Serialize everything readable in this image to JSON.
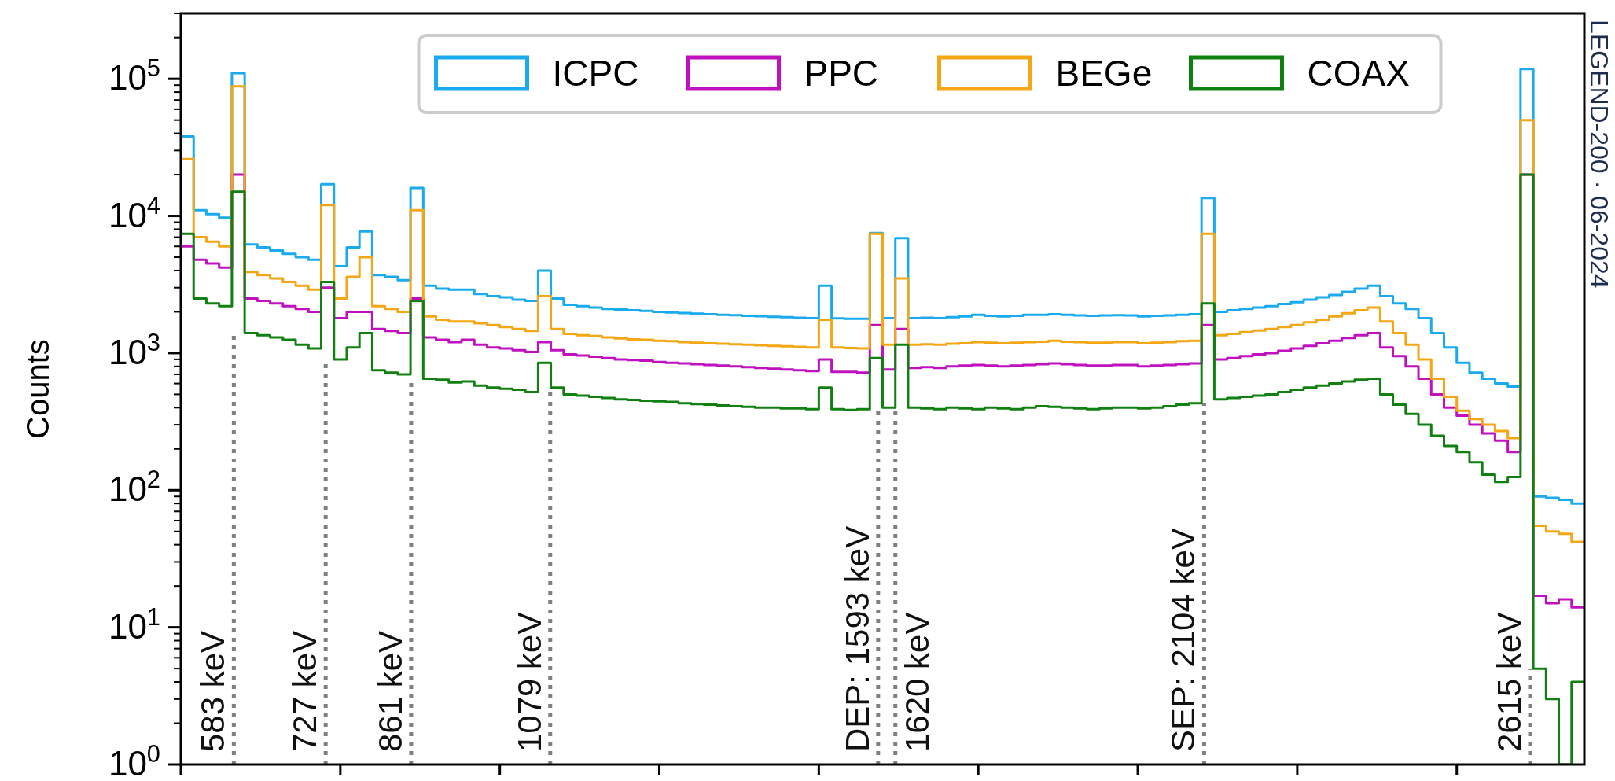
{
  "chart_data": {
    "type": "histogram",
    "ylabel": "Counts",
    "log": "y",
    "legend": "top",
    "line_style": "solid",
    "grid": false,
    "tick_labels": "y",
    "annotations": [
      "LEGEND-200 · 06-2024"
    ],
    "xlim": [
      500,
      2700
    ],
    "xticks": [
      {
        "value": 500,
        "label": null
      },
      {
        "value": 750,
        "label": null
      },
      {
        "value": 1000,
        "label": null
      },
      {
        "value": 1250,
        "label": null
      },
      {
        "value": 1500,
        "label": null
      },
      {
        "value": 1750,
        "label": null
      },
      {
        "value": 2000,
        "label": null
      },
      {
        "value": 2250,
        "label": null
      },
      {
        "value": 2500,
        "label": null
      }
    ],
    "ylim": [
      1,
      300000
    ],
    "yticks": [
      {
        "value": 1,
        "label": "10$^{0}$"
      },
      {
        "value": 2,
        "label": null
      },
      {
        "value": 3,
        "label": null
      },
      {
        "value": 4,
        "label": null
      },
      {
        "value": 5,
        "label": null
      },
      {
        "value": 6,
        "label": null
      },
      {
        "value": 7,
        "label": null
      },
      {
        "value": 8,
        "label": null
      },
      {
        "value": 9,
        "label": null
      },
      {
        "value": 10,
        "label": "10$^{1}$"
      },
      {
        "value": 20,
        "label": null
      },
      {
        "value": 30,
        "label": null
      },
      {
        "value": 40,
        "label": null
      },
      {
        "value": 50,
        "label": null
      },
      {
        "value": 60,
        "label": null
      },
      {
        "value": 70,
        "label": null
      },
      {
        "value": 80,
        "label": null
      },
      {
        "value": 90,
        "label": null
      },
      {
        "value": 100,
        "label": "10$^{2}$"
      },
      {
        "value": 200,
        "label": null
      },
      {
        "value": 300,
        "label": null
      },
      {
        "value": 400,
        "label": null
      },
      {
        "value": 500,
        "label": null
      },
      {
        "value": 600,
        "label": null
      },
      {
        "value": 700,
        "label": null
      },
      {
        "value": 800,
        "label": null
      },
      {
        "value": 900,
        "label": null
      },
      {
        "value": 1000,
        "label": "10$^{3}$"
      },
      {
        "value": 2000,
        "label": null
      },
      {
        "value": 3000,
        "label": null
      },
      {
        "value": 4000,
        "label": null
      },
      {
        "value": 5000,
        "label": null
      },
      {
        "value": 6000,
        "label": null
      },
      {
        "value": 7000,
        "label": null
      },
      {
        "value": 8000,
        "label": null
      },
      {
        "value": 9000,
        "label": null
      },
      {
        "value": 10000,
        "label": "10$^{4}$"
      },
      {
        "value": 20000,
        "label": null
      },
      {
        "value": 30000,
        "label": null
      },
      {
        "value": 40000,
        "label": null
      },
      {
        "value": 50000,
        "label": null
      },
      {
        "value": 60000,
        "label": null
      },
      {
        "value": 70000,
        "label": null
      },
      {
        "value": 80000,
        "label": null
      },
      {
        "value": 90000,
        "label": null
      },
      {
        "value": 100000,
        "label": "10$^{5}$"
      },
      {
        "value": 200000,
        "label": null
      },
      {
        "value": 300000,
        "label": null
      }
    ],
    "bins": [
      500,
      520,
      540,
      560,
      580,
      600,
      620,
      640,
      660,
      680,
      700,
      720,
      740,
      760,
      780,
      800,
      820,
      840,
      860,
      880,
      900,
      920,
      940,
      960,
      980,
      1000,
      1020,
      1040,
      1060,
      1080,
      1100,
      1120,
      1140,
      1160,
      1180,
      1200,
      1220,
      1240,
      1260,
      1280,
      1300,
      1320,
      1340,
      1360,
      1380,
      1400,
      1420,
      1440,
      1460,
      1480,
      1500,
      1520,
      1540,
      1560,
      1580,
      1600,
      1620,
      1640,
      1660,
      1680,
      1700,
      1720,
      1740,
      1760,
      1780,
      1800,
      1820,
      1840,
      1860,
      1880,
      1900,
      1920,
      1940,
      1960,
      1980,
      2000,
      2020,
      2040,
      2060,
      2080,
      2100,
      2120,
      2140,
      2160,
      2180,
      2200,
      2220,
      2240,
      2260,
      2280,
      2300,
      2320,
      2340,
      2360,
      2380,
      2400,
      2420,
      2440,
      2460,
      2480,
      2500,
      2520,
      2540,
      2560,
      2580,
      2600,
      2620,
      2640,
      2660,
      2680,
      2700
    ],
    "series": [
      {
        "name": "ICPC",
        "color": "#1aaaf0",
        "values": [
          38000,
          11000,
          10300,
          9700,
          110000,
          6200,
          5900,
          5600,
          5300,
          5000,
          4800,
          17000,
          4300,
          5900,
          7700,
          3700,
          3600,
          3400,
          16000,
          3100,
          2950,
          2900,
          2900,
          2700,
          2600,
          2550,
          2450,
          2400,
          4000,
          2500,
          2250,
          2200,
          2150,
          2100,
          2080,
          2050,
          2030,
          2000,
          1980,
          1960,
          1940,
          1920,
          1900,
          1890,
          1870,
          1860,
          1840,
          1830,
          1810,
          1800,
          3100,
          1790,
          1780,
          1780,
          7500,
          1800,
          6900,
          1800,
          1810,
          1800,
          1830,
          1850,
          1900,
          1870,
          1850,
          1870,
          1900,
          1900,
          1920,
          1900,
          1880,
          1870,
          1880,
          1890,
          1880,
          1850,
          1870,
          1880,
          1900,
          1920,
          13500,
          2000,
          2050,
          2100,
          2150,
          2200,
          2280,
          2350,
          2450,
          2550,
          2650,
          2800,
          2950,
          3100,
          2600,
          2300,
          2100,
          1800,
          1400,
          1100,
          850,
          720,
          650,
          600,
          570,
          118000,
          90,
          88,
          85,
          80
        ]
      },
      {
        "name": "PPC",
        "color": "#c010c0",
        "values": [
          6000,
          4800,
          4500,
          4200,
          20000,
          2500,
          2400,
          2300,
          2200,
          2100,
          2000,
          3000,
          1800,
          2000,
          2000,
          1500,
          1450,
          1400,
          2500,
          1300,
          1250,
          1200,
          1250,
          1150,
          1100,
          1080,
          1050,
          1020,
          1200,
          1050,
          980,
          960,
          940,
          920,
          900,
          890,
          880,
          860,
          850,
          840,
          830,
          820,
          810,
          800,
          790,
          780,
          770,
          760,
          750,
          740,
          900,
          730,
          730,
          720,
          1600,
          760,
          1500,
          780,
          790,
          780,
          800,
          810,
          820,
          810,
          800,
          810,
          820,
          830,
          840,
          830,
          820,
          810,
          810,
          820,
          820,
          800,
          810,
          820,
          830,
          840,
          1600,
          900,
          920,
          950,
          980,
          1000,
          1040,
          1080,
          1130,
          1180,
          1230,
          1290,
          1350,
          1400,
          1100,
          950,
          800,
          650,
          500,
          400,
          350,
          300,
          260,
          230,
          190,
          20000,
          17,
          15,
          16,
          14
        ]
      },
      {
        "name": "BEGe",
        "color": "#f5a614",
        "values": [
          26000,
          7000,
          6500,
          6000,
          88000,
          3900,
          3700,
          3500,
          3300,
          3100,
          2900,
          12000,
          2500,
          3600,
          5000,
          2200,
          2100,
          2000,
          11000,
          1850,
          1750,
          1700,
          1700,
          1650,
          1600,
          1550,
          1500,
          1450,
          2600,
          1500,
          1380,
          1350,
          1330,
          1300,
          1280,
          1260,
          1250,
          1230,
          1220,
          1200,
          1190,
          1180,
          1170,
          1160,
          1150,
          1140,
          1130,
          1120,
          1110,
          1100,
          1750,
          1100,
          1090,
          1080,
          7400,
          1150,
          3500,
          1150,
          1160,
          1150,
          1170,
          1180,
          1200,
          1190,
          1180,
          1190,
          1200,
          1210,
          1230,
          1210,
          1200,
          1190,
          1190,
          1200,
          1200,
          1180,
          1190,
          1200,
          1220,
          1230,
          7400,
          1350,
          1380,
          1420,
          1460,
          1500,
          1550,
          1600,
          1680,
          1750,
          1850,
          1950,
          2050,
          2150,
          1700,
          1400,
          1150,
          900,
          650,
          480,
          380,
          330,
          300,
          270,
          240,
          50000,
          55,
          50,
          48,
          42
        ]
      },
      {
        "name": "COAX",
        "color": "#108010",
        "values": [
          7400,
          2500,
          2300,
          2200,
          15000,
          1400,
          1350,
          1300,
          1250,
          1150,
          1080,
          3300,
          900,
          1100,
          1400,
          750,
          720,
          700,
          2400,
          650,
          640,
          610,
          620,
          580,
          560,
          550,
          540,
          520,
          850,
          560,
          500,
          490,
          480,
          470,
          460,
          455,
          450,
          445,
          440,
          430,
          425,
          420,
          415,
          410,
          405,
          400,
          400,
          395,
          395,
          390,
          560,
          390,
          385,
          390,
          920,
          400,
          1150,
          400,
          395,
          390,
          400,
          395,
          390,
          400,
          395,
          390,
          400,
          410,
          405,
          400,
          395,
          390,
          395,
          400,
          400,
          395,
          400,
          410,
          420,
          430,
          2300,
          460,
          470,
          480,
          490,
          500,
          520,
          540,
          560,
          580,
          600,
          620,
          640,
          650,
          500,
          420,
          360,
          300,
          250,
          210,
          190,
          160,
          130,
          115,
          125,
          20000,
          5,
          3,
          1,
          4
        ]
      }
    ],
    "ref_lines": [
      {
        "axis": "x",
        "value": 583,
        "label": "583 keV",
        "color": "#808080",
        "line_style": "dotted"
      },
      {
        "axis": "x",
        "value": 727,
        "label": "727 keV",
        "color": "#808080",
        "line_style": "dotted"
      },
      {
        "axis": "x",
        "value": 861,
        "label": "861 keV",
        "color": "#808080",
        "line_style": "dotted"
      },
      {
        "axis": "x",
        "value": 1079,
        "label": "1079 keV",
        "color": "#808080",
        "line_style": "dotted"
      },
      {
        "axis": "x",
        "value": 1593,
        "label": "DEP: 1593 keV",
        "color": "#808080",
        "line_style": "dotted"
      },
      {
        "axis": "x",
        "value": 1620,
        "label": "1620 keV",
        "color": "#808080",
        "line_style": "dotted"
      },
      {
        "axis": "x",
        "value": 2104,
        "label": "SEP: 2104 keV",
        "color": "#808080",
        "line_style": "dotted"
      },
      {
        "axis": "x",
        "value": 2615,
        "label": "2615 keV",
        "color": "#808080",
        "line_style": "dotted"
      }
    ]
  }
}
